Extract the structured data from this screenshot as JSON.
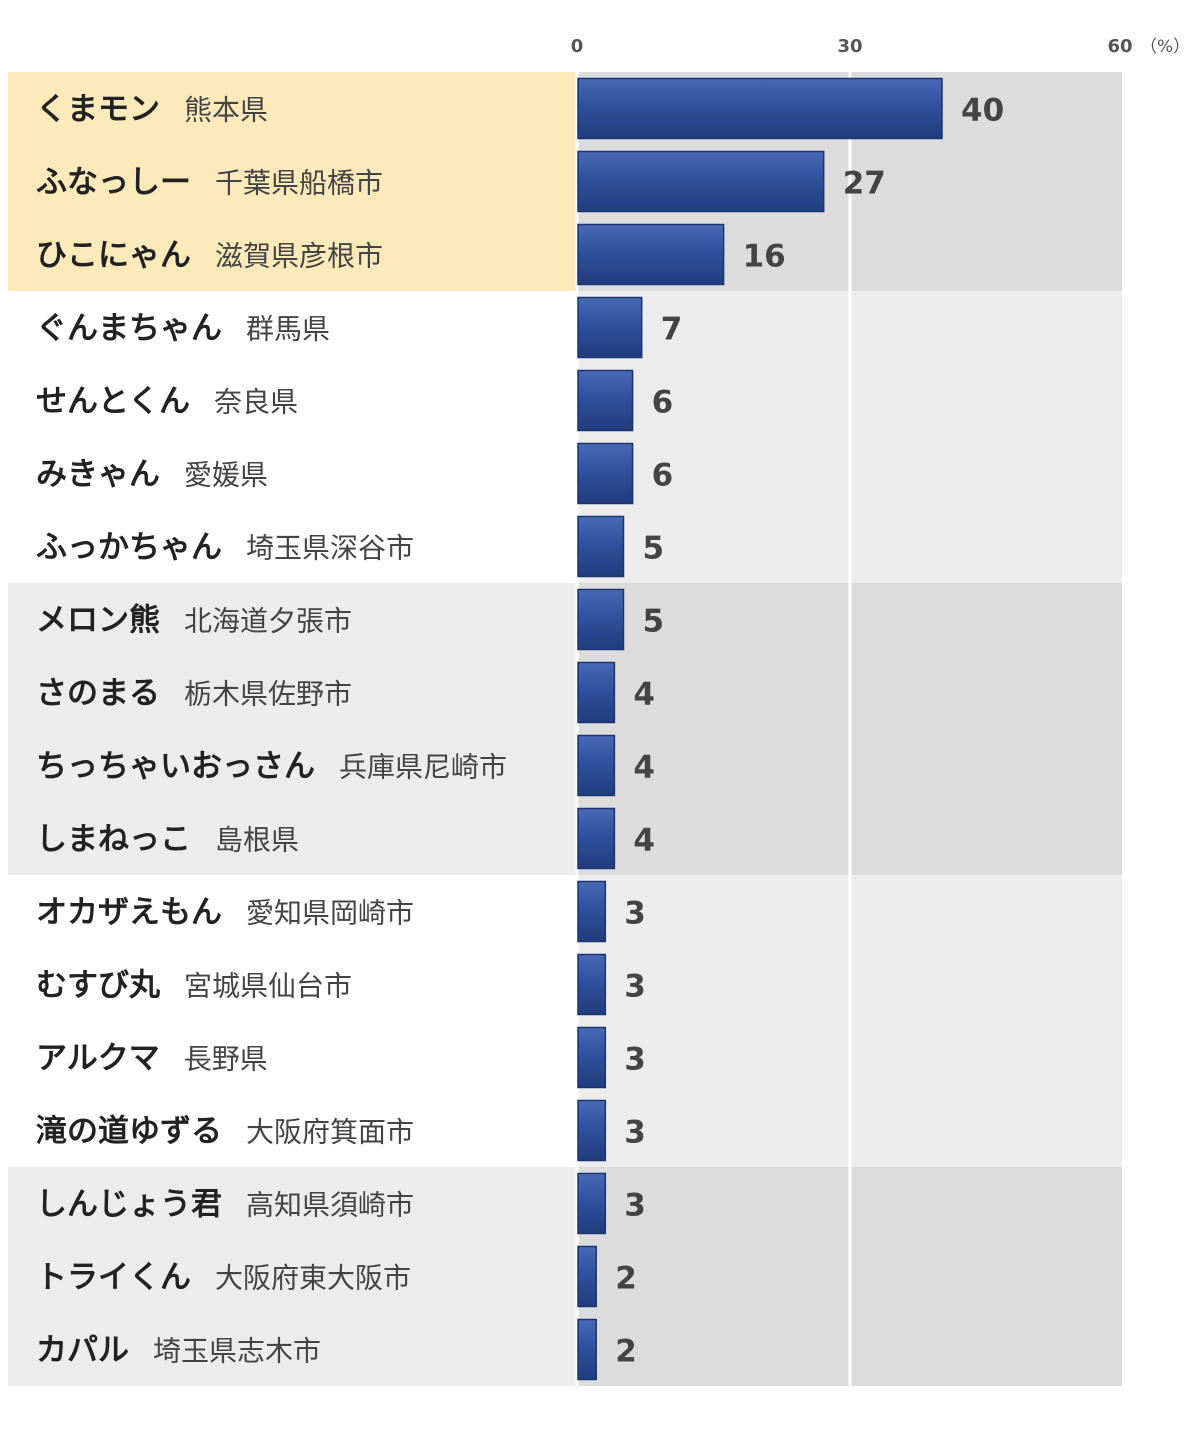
{
  "chart_data": {
    "type": "bar",
    "orientation": "horizontal",
    "unit": "（%）",
    "xlim": [
      0,
      60
    ],
    "ticks": [
      "0",
      "30",
      "60"
    ],
    "categories": [
      {
        "name": "くまモン",
        "region": "熊本県"
      },
      {
        "name": "ふなっしー",
        "region": "千葉県船橋市"
      },
      {
        "name": "ひこにゃん",
        "region": "滋賀県彦根市"
      },
      {
        "name": "ぐんまちゃん",
        "region": "群馬県"
      },
      {
        "name": "せんとくん",
        "region": "奈良県"
      },
      {
        "name": "みきゃん",
        "region": "愛媛県"
      },
      {
        "name": "ふっかちゃん",
        "region": "埼玉県深谷市"
      },
      {
        "name": "メロン熊",
        "region": "北海道夕張市"
      },
      {
        "name": "さのまる",
        "region": "栃木県佐野市"
      },
      {
        "name": "ちっちゃいおっさん",
        "region": "兵庫県尼崎市"
      },
      {
        "name": "しまねっこ",
        "region": "島根県"
      },
      {
        "name": "オカザえもん",
        "region": "愛知県岡崎市"
      },
      {
        "name": "むすび丸",
        "region": "宮城県仙台市"
      },
      {
        "name": "アルクマ",
        "region": "長野県"
      },
      {
        "name": "滝の道ゆずる",
        "region": "大阪府箕面市"
      },
      {
        "name": "しんじょう君",
        "region": "高知県須崎市"
      },
      {
        "name": "トライくん",
        "region": "大阪府東大阪市"
      },
      {
        "name": "カパル",
        "region": "埼玉県志木市"
      }
    ],
    "values": [
      40,
      27,
      16,
      7,
      6,
      6,
      5,
      5,
      4,
      4,
      4,
      3,
      3,
      3,
      3,
      3,
      2,
      2
    ],
    "value_labels": [
      "40",
      "27",
      "16",
      "7",
      "6",
      "6",
      "5",
      "5",
      "4",
      "4",
      "4",
      "3",
      "3",
      "3",
      "3",
      "3",
      "2",
      "2"
    ],
    "groups": [
      {
        "rows": [
          0,
          2
        ],
        "highlight": true
      },
      {
        "rows": [
          3,
          6
        ],
        "highlight": false
      },
      {
        "rows": [
          7,
          10
        ],
        "highlight": false
      },
      {
        "rows": [
          11,
          14
        ],
        "highlight": false
      },
      {
        "rows": [
          15,
          17
        ],
        "highlight": false
      }
    ],
    "grid": true,
    "colors": {
      "bar": "#2e4f9b",
      "highlight_left": "#fdeabb",
      "highlight_right": "#dcdcdc",
      "band_a_left": "#ffffff",
      "band_a_right": "#ececec",
      "band_b_left": "#ececec",
      "band_b_right": "#dcdcdc",
      "gridline": "#ffffff"
    }
  }
}
